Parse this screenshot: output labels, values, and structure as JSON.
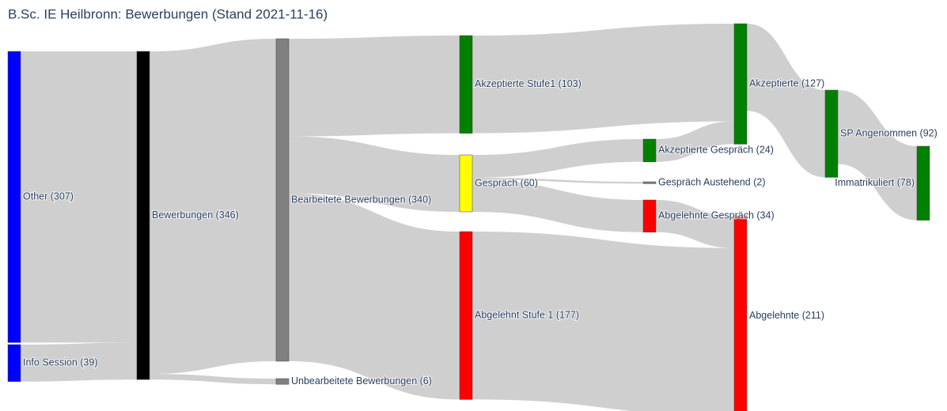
{
  "chart_data": {
    "type": "sankey",
    "title": "B.Sc. IE Heilbronn: Bewerbungen (Stand 2021-11-16)",
    "nodes": [
      {
        "label": "Other (307)",
        "color": "#0000ff"
      },
      {
        "label": "Info Session (39)",
        "color": "#0000ff"
      },
      {
        "label": "Bewerbungen (346)",
        "color": "#000000"
      },
      {
        "label": "Bearbeitete Bewerbungen (340)",
        "color": "#808080"
      },
      {
        "label": "Unbearbeitete Bewerbungen (6)",
        "color": "#808080"
      },
      {
        "label": "Akzeptierte Stufe1 (103)",
        "color": "#008000"
      },
      {
        "label": "Gespräch (60)",
        "color": "#ffff00"
      },
      {
        "label": "Abgelehnt Stufe 1 (177)",
        "color": "#ff0000"
      },
      {
        "label": "Akzeptierte Gespräch (24)",
        "color": "#008000"
      },
      {
        "label": "Gespräch Austehend (2)",
        "color": "#808080"
      },
      {
        "label": "Abgelehnte Gespräch (34)",
        "color": "#ff0000"
      },
      {
        "label": "Akzeptierte (127)",
        "color": "#008000"
      },
      {
        "label": "Abgelehnte (211)",
        "color": "#ff0000"
      },
      {
        "label": "SP Angenommen (92)",
        "color": "#008000"
      },
      {
        "label": "Immatrikuliert (78)",
        "color": "#008000"
      }
    ],
    "links": [
      {
        "source": 0,
        "target": 2,
        "value": 307
      },
      {
        "source": 1,
        "target": 2,
        "value": 39
      },
      {
        "source": 2,
        "target": 3,
        "value": 340
      },
      {
        "source": 2,
        "target": 4,
        "value": 6
      },
      {
        "source": 3,
        "target": 5,
        "value": 103
      },
      {
        "source": 3,
        "target": 6,
        "value": 60
      },
      {
        "source": 3,
        "target": 7,
        "value": 177
      },
      {
        "source": 6,
        "target": 8,
        "value": 24
      },
      {
        "source": 6,
        "target": 9,
        "value": 2
      },
      {
        "source": 6,
        "target": 10,
        "value": 34
      },
      {
        "source": 5,
        "target": 11,
        "value": 103
      },
      {
        "source": 8,
        "target": 11,
        "value": 24
      },
      {
        "source": 7,
        "target": 12,
        "value": 177
      },
      {
        "source": 10,
        "target": 12,
        "value": 34
      },
      {
        "source": 11,
        "target": 13,
        "value": 92
      },
      {
        "source": 13,
        "target": 14,
        "value": 78
      }
    ],
    "link_color": "rgba(160,160,160,0.5)"
  }
}
